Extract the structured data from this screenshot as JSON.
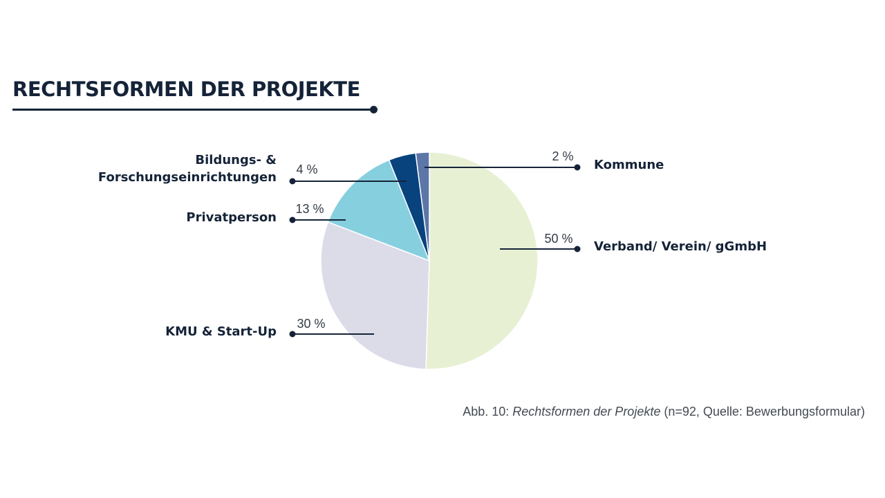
{
  "header": {
    "title": "RECHTSFORMEN DER PROJEKTE"
  },
  "chart_data": {
    "type": "pie",
    "start": "12 o'clock, clockwise",
    "slices": [
      {
        "label": "Verband/ Verein/ gGmbH",
        "value": 50,
        "pct_label": "50 %",
        "color": "#e8f0d4"
      },
      {
        "label": "KMU & Start-Up",
        "value": 30,
        "pct_label": "30 %",
        "color": "#dcdce9"
      },
      {
        "label": "Privatperson",
        "value": 13,
        "pct_label": "13 %",
        "color": "#86cfdf"
      },
      {
        "label": "Bildungs- & Forschungseinrichtungen",
        "label_lines": [
          "Bildungs- &",
          "Forschungseinrichtungen"
        ],
        "value": 4,
        "pct_label": "4 %",
        "color": "#08437e"
      },
      {
        "label": "Kommune",
        "value": 2,
        "pct_label": "2 %",
        "color": "#5d76a8"
      }
    ],
    "leader_color": "#152338"
  },
  "caption": {
    "prefix": "Abb. 10: ",
    "italic": "Rechtsformen der Projekte",
    "suffix": " (n=92, Quelle: Bewerbungsformular)"
  }
}
